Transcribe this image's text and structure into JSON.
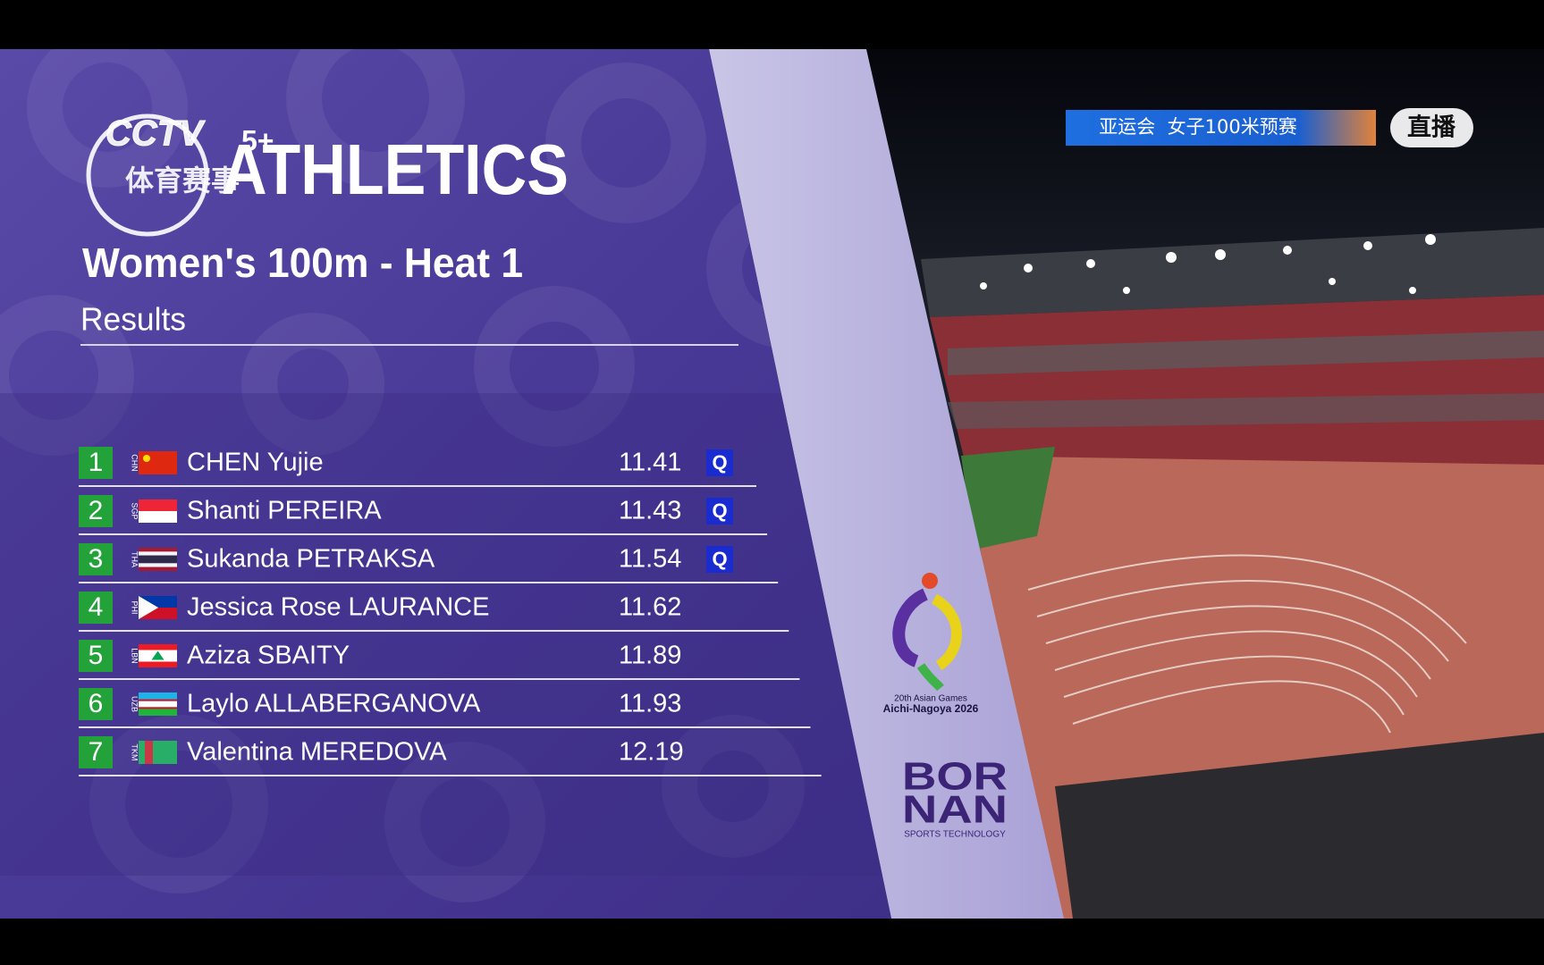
{
  "broadcast": {
    "channel": "CCTV",
    "channel_number": "5+",
    "channel_subtitle": "体育赛事",
    "event_banner": "亚运会  女子100米预赛",
    "live_badge": "直播"
  },
  "header": {
    "sport": "ATHLETICS",
    "event": "Women's 100m - Heat 1",
    "stage": "Results"
  },
  "table": {
    "rows": [
      {
        "rank": "1",
        "country": "CHN",
        "name": "CHEN Yujie",
        "time": "11.41",
        "qualifier": "Q"
      },
      {
        "rank": "2",
        "country": "SGP",
        "name": "Shanti PEREIRA",
        "time": "11.43",
        "qualifier": "Q"
      },
      {
        "rank": "3",
        "country": "THA",
        "name": "Sukanda PETRAKSA",
        "time": "11.54",
        "qualifier": "Q"
      },
      {
        "rank": "4",
        "country": "PHI",
        "name": "Jessica Rose LAURANCE",
        "time": "11.62"
      },
      {
        "rank": "5",
        "country": "LBN",
        "name": "Aziza SBAITY",
        "time": "11.89"
      },
      {
        "rank": "6",
        "country": "UZB",
        "name": "Laylo ALLABERGANOVA",
        "time": "11.93"
      },
      {
        "rank": "7",
        "country": "TKM",
        "name": "Valentina MEREDOVA",
        "time": "12.19"
      }
    ]
  },
  "sponsors": {
    "games_edition": "20th Asian Games",
    "games_host": "Aichi-Nagoya 2026",
    "brand_line1": "BOR",
    "brand_line2": "NAN",
    "brand_tagline": "SPORTS TECHNOLOGY"
  }
}
